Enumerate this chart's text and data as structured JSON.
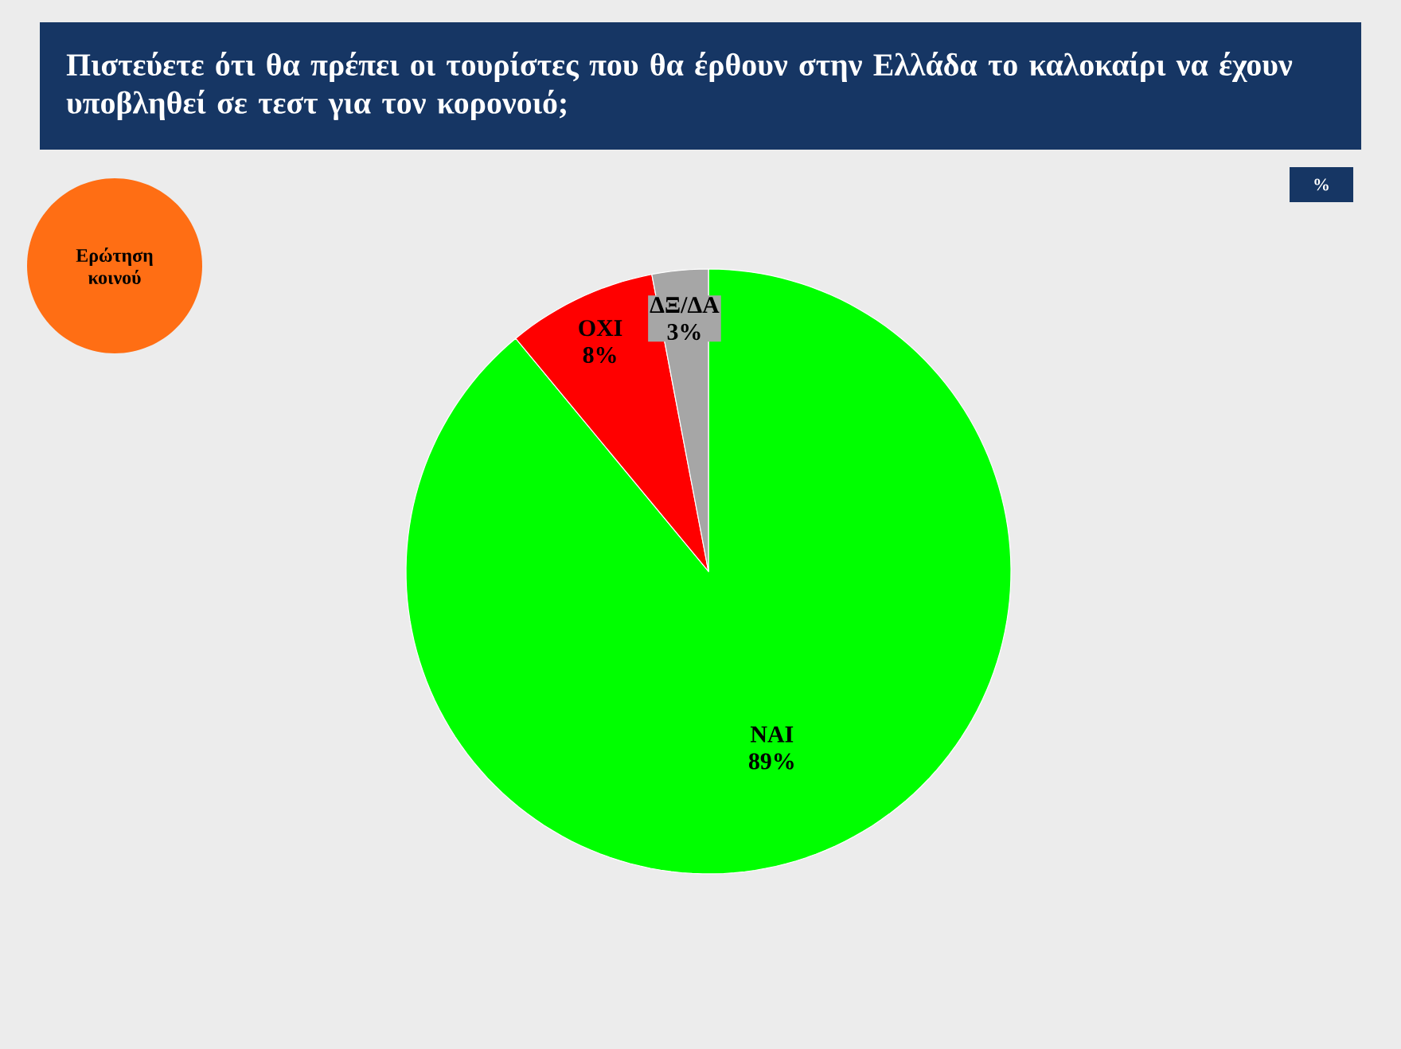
{
  "chart_data": {
    "type": "pie",
    "title": "Πιστεύετε ότι θα πρέπει οι τουρίστες που θα έρθουν στην Ελλάδα το καλοκαίρι να έχουν υποβληθεί σε τεστ για τον κορονοιό;",
    "categories": [
      "ΝΑΙ",
      "ΟΧΙ",
      "ΔΞ/ΔΑ"
    ],
    "values": [
      89,
      8,
      3
    ],
    "value_labels": [
      "89%",
      "8%",
      "3%"
    ],
    "colors": [
      "#00ff00",
      "#ff0000",
      "#a6a6a6"
    ],
    "annotations": [
      "Ερώτηση κοινού",
      "%"
    ]
  }
}
